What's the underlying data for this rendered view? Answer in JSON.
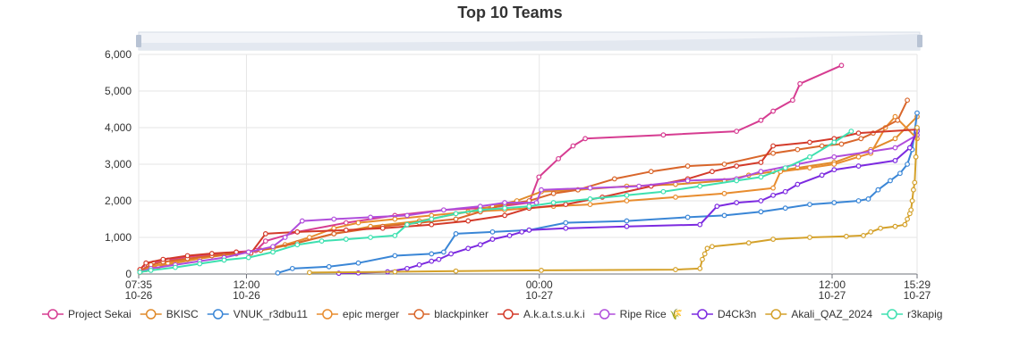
{
  "chart_data": {
    "type": "line",
    "title": "Top 10 Teams",
    "x_axis": {
      "type": "time",
      "min_hours": 0,
      "max_hours": 55.9,
      "ticks": [
        {
          "hours": 0,
          "time": "07:35",
          "date": "10-26"
        },
        {
          "hours": 4.4167,
          "time": "12:00",
          "date": "10-26"
        },
        {
          "hours": 16.4167,
          "time": "00:00",
          "date": "10-27"
        },
        {
          "hours": 28.4167,
          "time": "12:00",
          "date": "10-27"
        },
        {
          "hours": 31.9,
          "time": "15:29",
          "date": "10-27"
        }
      ],
      "note_start": "10-26 07:35",
      "note_end": "10-27 15:29"
    },
    "y_axis": {
      "min": 0,
      "max": 6000,
      "ticks": [
        "0",
        "1,000",
        "2,000",
        "3,000",
        "4,000",
        "5,000",
        "6,000"
      ]
    },
    "grid": true,
    "legend_position": "bottom",
    "series": [
      {
        "name": "Project Sekai",
        "color": "#d63c91",
        "points": [
          [
            0.05,
            60
          ],
          [
            0.2,
            150
          ],
          [
            0.4,
            230
          ],
          [
            0.6,
            300
          ],
          [
            1.2,
            380
          ],
          [
            2.0,
            470
          ],
          [
            3.0,
            540
          ],
          [
            4.0,
            600
          ],
          [
            4.8,
            640
          ],
          [
            5.2,
            900
          ],
          [
            6.5,
            1150
          ],
          [
            8.5,
            1400
          ],
          [
            10.5,
            1600
          ],
          [
            12.5,
            1750
          ],
          [
            14.5,
            1820
          ],
          [
            16.0,
            1950
          ],
          [
            16.4,
            2650
          ],
          [
            17.2,
            3150
          ],
          [
            17.8,
            3500
          ],
          [
            18.3,
            3700
          ],
          [
            21.5,
            3800
          ],
          [
            24.5,
            3900
          ],
          [
            25.5,
            4200
          ],
          [
            26.0,
            4450
          ],
          [
            26.8,
            4750
          ],
          [
            27.1,
            5200
          ],
          [
            28.8,
            5700
          ]
        ]
      },
      {
        "name": "BKISC",
        "color": "#e08a2a",
        "points": [
          [
            0.05,
            40
          ],
          [
            0.3,
            120
          ],
          [
            0.8,
            200
          ],
          [
            1.5,
            300
          ],
          [
            2.5,
            420
          ],
          [
            3.5,
            520
          ],
          [
            4.5,
            600
          ],
          [
            5.5,
            700
          ],
          [
            6.5,
            850
          ],
          [
            8.0,
            1100
          ],
          [
            9.5,
            1300
          ],
          [
            11.5,
            1450
          ],
          [
            13.5,
            1700
          ],
          [
            14.5,
            1850
          ],
          [
            15.5,
            2000
          ],
          [
            16.5,
            2250
          ],
          [
            18.0,
            2300
          ],
          [
            20.0,
            2400
          ],
          [
            22.0,
            2450
          ],
          [
            24.0,
            2550
          ],
          [
            25.0,
            2700
          ],
          [
            26.0,
            2800
          ],
          [
            27.0,
            2900
          ],
          [
            28.5,
            3050
          ],
          [
            30.0,
            3400
          ],
          [
            31.0,
            3700
          ],
          [
            31.9,
            4300
          ]
        ]
      },
      {
        "name": "VNUK_r3dbu11",
        "color": "#3a86d6",
        "points": [
          [
            5.7,
            30
          ],
          [
            6.3,
            150
          ],
          [
            7.8,
            200
          ],
          [
            9.0,
            300
          ],
          [
            10.5,
            500
          ],
          [
            12.0,
            550
          ],
          [
            12.5,
            600
          ],
          [
            13.0,
            1100
          ],
          [
            14.5,
            1150
          ],
          [
            16.0,
            1200
          ],
          [
            17.5,
            1400
          ],
          [
            20.0,
            1450
          ],
          [
            22.5,
            1550
          ],
          [
            24.0,
            1600
          ],
          [
            25.5,
            1700
          ],
          [
            26.5,
            1800
          ],
          [
            27.5,
            1900
          ],
          [
            28.5,
            1950
          ],
          [
            29.5,
            2000
          ],
          [
            29.9,
            2050
          ],
          [
            30.3,
            2300
          ],
          [
            30.8,
            2550
          ],
          [
            31.2,
            2750
          ],
          [
            31.5,
            3000
          ],
          [
            31.7,
            3400
          ],
          [
            31.9,
            4400
          ]
        ]
      },
      {
        "name": "epic merger",
        "color": "#e88c2e",
        "points": [
          [
            0.05,
            80
          ],
          [
            0.5,
            200
          ],
          [
            1.2,
            300
          ],
          [
            2.0,
            400
          ],
          [
            3.0,
            500
          ],
          [
            4.0,
            550
          ],
          [
            5.0,
            650
          ],
          [
            6.0,
            800
          ],
          [
            7.0,
            1000
          ],
          [
            8.0,
            1250
          ],
          [
            9.0,
            1400
          ],
          [
            10.5,
            1500
          ],
          [
            12.0,
            1600
          ],
          [
            13.5,
            1700
          ],
          [
            15.0,
            1750
          ],
          [
            16.0,
            1800
          ],
          [
            17.0,
            1850
          ],
          [
            18.5,
            1900
          ],
          [
            20.0,
            2000
          ],
          [
            22.0,
            2100
          ],
          [
            24.0,
            2200
          ],
          [
            26.0,
            2350
          ],
          [
            26.3,
            2800
          ],
          [
            27.5,
            2900
          ],
          [
            28.5,
            3000
          ],
          [
            29.5,
            3200
          ],
          [
            30.0,
            3300
          ],
          [
            30.6,
            4000
          ],
          [
            31.0,
            4300
          ],
          [
            31.9,
            3700
          ]
        ]
      },
      {
        "name": "blackpinker",
        "color": "#d9662b",
        "points": [
          [
            0.1,
            100
          ],
          [
            0.5,
            250
          ],
          [
            1.0,
            330
          ],
          [
            2.0,
            420
          ],
          [
            3.0,
            500
          ],
          [
            4.0,
            560
          ],
          [
            5.0,
            650
          ],
          [
            6.5,
            850
          ],
          [
            8.0,
            1100
          ],
          [
            10.0,
            1300
          ],
          [
            11.5,
            1400
          ],
          [
            13.0,
            1500
          ],
          [
            14.0,
            1700
          ],
          [
            15.0,
            1900
          ],
          [
            16.0,
            2000
          ],
          [
            17.0,
            2200
          ],
          [
            18.0,
            2300
          ],
          [
            19.5,
            2600
          ],
          [
            21.0,
            2800
          ],
          [
            22.5,
            2950
          ],
          [
            24.0,
            3000
          ],
          [
            26.0,
            3300
          ],
          [
            27.0,
            3400
          ],
          [
            28.0,
            3500
          ],
          [
            28.8,
            3550
          ],
          [
            29.6,
            3700
          ],
          [
            30.1,
            3850
          ],
          [
            31.1,
            4200
          ],
          [
            31.5,
            4750
          ]
        ]
      },
      {
        "name": "A.k.a.t.s.u.k.i",
        "color": "#d33a2a",
        "points": [
          [
            0.05,
            120
          ],
          [
            0.3,
            300
          ],
          [
            1.0,
            400
          ],
          [
            2.0,
            500
          ],
          [
            3.0,
            560
          ],
          [
            4.0,
            600
          ],
          [
            4.6,
            570
          ],
          [
            5.2,
            1100
          ],
          [
            6.5,
            1150
          ],
          [
            8.5,
            1200
          ],
          [
            10.0,
            1250
          ],
          [
            12.0,
            1350
          ],
          [
            13.5,
            1450
          ],
          [
            15.0,
            1600
          ],
          [
            16.0,
            1800
          ],
          [
            17.5,
            1900
          ],
          [
            19.0,
            2100
          ],
          [
            21.0,
            2400
          ],
          [
            22.5,
            2600
          ],
          [
            23.5,
            2800
          ],
          [
            24.5,
            2950
          ],
          [
            25.5,
            3050
          ],
          [
            26.0,
            3500
          ],
          [
            27.5,
            3600
          ],
          [
            28.5,
            3700
          ],
          [
            29.5,
            3850
          ],
          [
            31.9,
            3950
          ]
        ]
      },
      {
        "name": "Ripe Rice 🌾",
        "color": "#b04ddb",
        "points": [
          [
            0.05,
            50
          ],
          [
            0.5,
            150
          ],
          [
            1.5,
            250
          ],
          [
            2.5,
            350
          ],
          [
            3.5,
            450
          ],
          [
            4.5,
            600
          ],
          [
            5.5,
            750
          ],
          [
            6.0,
            1000
          ],
          [
            6.7,
            1450
          ],
          [
            8.0,
            1500
          ],
          [
            9.5,
            1550
          ],
          [
            11.0,
            1600
          ],
          [
            12.5,
            1750
          ],
          [
            14.0,
            1850
          ],
          [
            15.0,
            1950
          ],
          [
            16.3,
            1950
          ],
          [
            16.5,
            2300
          ],
          [
            18.5,
            2350
          ],
          [
            20.5,
            2400
          ],
          [
            22.5,
            2550
          ],
          [
            24.5,
            2600
          ],
          [
            25.5,
            2800
          ],
          [
            27.0,
            3000
          ],
          [
            28.5,
            3200
          ],
          [
            30.0,
            3350
          ],
          [
            31.0,
            3450
          ],
          [
            31.9,
            3800
          ]
        ]
      },
      {
        "name": "D4Ck3n",
        "color": "#7c2ae0",
        "points": [
          [
            8.2,
            20
          ],
          [
            9.0,
            30
          ],
          [
            10.2,
            60
          ],
          [
            11.0,
            150
          ],
          [
            11.5,
            250
          ],
          [
            12.0,
            350
          ],
          [
            12.3,
            400
          ],
          [
            12.8,
            550
          ],
          [
            13.5,
            700
          ],
          [
            14.0,
            800
          ],
          [
            14.5,
            950
          ],
          [
            15.2,
            1050
          ],
          [
            15.7,
            1150
          ],
          [
            16.0,
            1200
          ],
          [
            17.5,
            1250
          ],
          [
            20.0,
            1300
          ],
          [
            23.0,
            1350
          ],
          [
            23.7,
            1850
          ],
          [
            24.5,
            1950
          ],
          [
            25.5,
            2000
          ],
          [
            26.0,
            2150
          ],
          [
            26.5,
            2250
          ],
          [
            27.0,
            2450
          ],
          [
            28.0,
            2700
          ],
          [
            28.5,
            2850
          ],
          [
            29.5,
            2950
          ],
          [
            31.0,
            3100
          ],
          [
            31.6,
            3450
          ],
          [
            31.9,
            3900
          ]
        ]
      },
      {
        "name": "Akali_QAZ_2024",
        "color": "#d4a12a",
        "points": [
          [
            7.0,
            40
          ],
          [
            10.5,
            60
          ],
          [
            13.0,
            80
          ],
          [
            16.5,
            100
          ],
          [
            22.0,
            120
          ],
          [
            23.0,
            150
          ],
          [
            23.1,
            400
          ],
          [
            23.2,
            550
          ],
          [
            23.3,
            700
          ],
          [
            23.5,
            750
          ],
          [
            25.0,
            850
          ],
          [
            26.0,
            950
          ],
          [
            27.5,
            1000
          ],
          [
            29.0,
            1030
          ],
          [
            29.7,
            1050
          ],
          [
            30.0,
            1150
          ],
          [
            30.4,
            1250
          ],
          [
            31.0,
            1300
          ],
          [
            31.4,
            1350
          ],
          [
            31.5,
            1500
          ],
          [
            31.6,
            1650
          ],
          [
            31.65,
            1750
          ],
          [
            31.7,
            2000
          ],
          [
            31.75,
            2300
          ],
          [
            31.8,
            2500
          ],
          [
            31.85,
            3200
          ],
          [
            31.9,
            4000
          ]
        ]
      },
      {
        "name": "r3kapig",
        "color": "#3ee0b0",
        "points": [
          [
            0.05,
            50
          ],
          [
            0.5,
            100
          ],
          [
            1.5,
            180
          ],
          [
            2.5,
            280
          ],
          [
            3.5,
            380
          ],
          [
            4.5,
            450
          ],
          [
            5.5,
            600
          ],
          [
            6.5,
            800
          ],
          [
            7.5,
            900
          ],
          [
            8.5,
            950
          ],
          [
            9.5,
            1000
          ],
          [
            10.5,
            1050
          ],
          [
            11.0,
            1350
          ],
          [
            12.0,
            1500
          ],
          [
            13.0,
            1650
          ],
          [
            14.0,
            1750
          ],
          [
            15.0,
            1800
          ],
          [
            16.0,
            1850
          ],
          [
            17.0,
            1950
          ],
          [
            18.5,
            2050
          ],
          [
            20.0,
            2150
          ],
          [
            21.5,
            2250
          ],
          [
            23.0,
            2400
          ],
          [
            24.5,
            2550
          ],
          [
            25.5,
            2650
          ],
          [
            26.5,
            2900
          ],
          [
            27.5,
            3200
          ],
          [
            28.5,
            3600
          ],
          [
            29.2,
            3900
          ]
        ]
      }
    ]
  }
}
